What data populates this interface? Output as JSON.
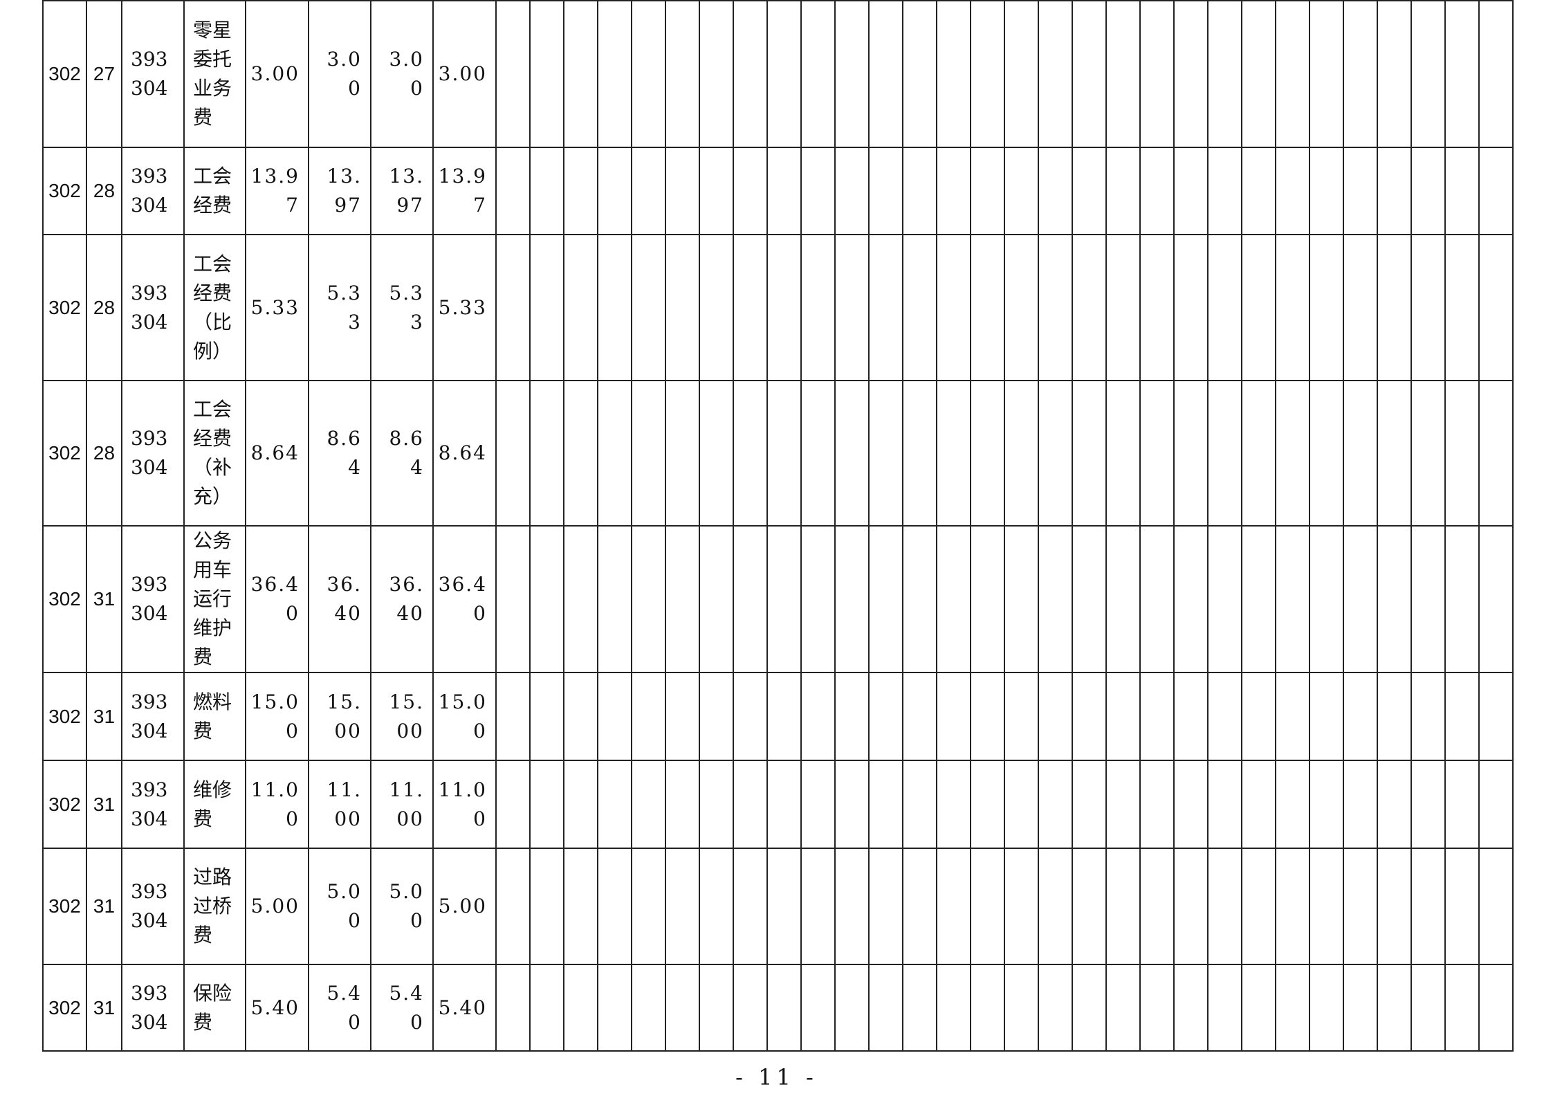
{
  "table": {
    "rows": [
      {
        "class": "302",
        "item": "27",
        "code": "393304",
        "name": "零星委托业务费",
        "values": [
          "3.00",
          "3.00",
          "3.00",
          "3.00"
        ]
      },
      {
        "class": "302",
        "item": "28",
        "code": "393304",
        "name": "工会经费",
        "values": [
          "13.97",
          "13.97",
          "13.97",
          "13.97"
        ]
      },
      {
        "class": "302",
        "item": "28",
        "code": "393304",
        "name": "工会经费（比例）",
        "values": [
          "5.33",
          "5.33",
          "5.33",
          "5.33"
        ]
      },
      {
        "class": "302",
        "item": "28",
        "code": "393304",
        "name": "工会经费（补充）",
        "values": [
          "8.64",
          "8.64",
          "8.64",
          "8.64"
        ]
      },
      {
        "class": "302",
        "item": "31",
        "code": "393304",
        "name": "公务用车运行维护费",
        "values": [
          "36.40",
          "36.40",
          "36.40",
          "36.40"
        ]
      },
      {
        "class": "302",
        "item": "31",
        "code": "393304",
        "name": "燃料费",
        "values": [
          "15.00",
          "15.00",
          "15.00",
          "15.00"
        ]
      },
      {
        "class": "302",
        "item": "31",
        "code": "393304",
        "name": "维修费",
        "values": [
          "11.00",
          "11.00",
          "11.00",
          "11.00"
        ]
      },
      {
        "class": "302",
        "item": "31",
        "code": "393304",
        "name": "过路过桥费",
        "values": [
          "5.00",
          "5.00",
          "5.00",
          "5.00"
        ]
      },
      {
        "class": "302",
        "item": "31",
        "code": "393304",
        "name": "保险费",
        "values": [
          "5.40",
          "5.40",
          "5.40",
          "5.40"
        ]
      }
    ]
  },
  "footer": {
    "page_number": "- 11 -"
  }
}
